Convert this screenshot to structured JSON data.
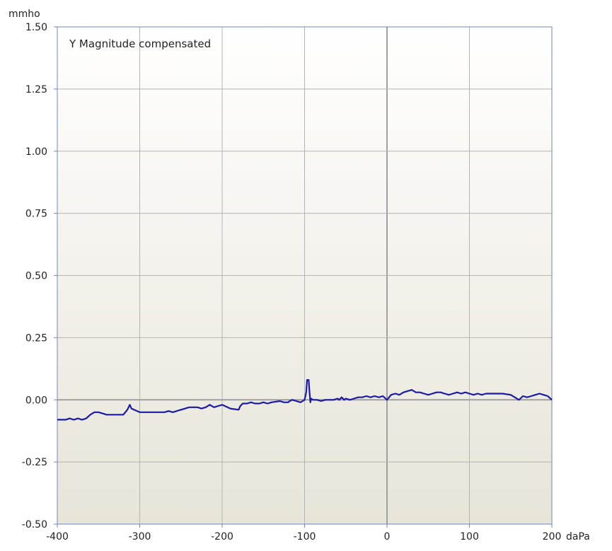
{
  "chart_data": {
    "type": "line",
    "legend_label": "Y  Magnitude compensated",
    "x_unit": "daPa",
    "y_unit": "mmho",
    "xlim": [
      -400,
      200
    ],
    "ylim": [
      -0.5,
      1.5
    ],
    "x_ticks": [
      -400,
      -300,
      -200,
      -100,
      0,
      100,
      200
    ],
    "x_tick_labels": [
      "-400",
      "-300",
      "-200",
      "-100",
      "0",
      "100",
      "200"
    ],
    "y_ticks": [
      -0.5,
      -0.25,
      0,
      0.25,
      0.5,
      0.75,
      1.0,
      1.25,
      1.5
    ],
    "y_tick_labels": [
      "-0.50",
      "-0.25",
      "0.00",
      "0.25",
      "0.50",
      "0.75",
      "1.00",
      "1.25",
      "1.50"
    ],
    "grid": true,
    "colors": {
      "line": "#1a1aa6",
      "grid": "#b4b4b4",
      "zero_line": "#a0a0a0",
      "axis": "#6f86c6",
      "bg_top": "#ffffff",
      "bg_bottom": "#e7e4d8"
    },
    "series": [
      {
        "x": [
          -400,
          -390,
          -385,
          -380,
          -375,
          -370,
          -365,
          -360,
          -355,
          -350,
          -345,
          -340,
          -335,
          -330,
          -320,
          -315,
          -312,
          -310,
          -300,
          -290,
          -280,
          -270,
          -265,
          -260,
          -250,
          -245,
          -240,
          -230,
          -225,
          -220,
          -215,
          -210,
          -205,
          -200,
          -190,
          -180,
          -178,
          -175,
          -170,
          -165,
          -160,
          -155,
          -150,
          -145,
          -140,
          -130,
          -125,
          -120,
          -118,
          -115,
          -110,
          -105,
          -100,
          -98,
          -97,
          -96,
          -95,
          -94,
          -93,
          -92,
          -90,
          -85,
          -80,
          -75,
          -70,
          -65,
          -60,
          -58,
          -55,
          -52,
          -50,
          -45,
          -40,
          -35,
          -30,
          -25,
          -20,
          -15,
          -10,
          -5,
          0,
          5,
          10,
          15,
          20,
          25,
          30,
          35,
          40,
          45,
          50,
          55,
          60,
          65,
          70,
          75,
          80,
          85,
          90,
          95,
          100,
          105,
          110,
          115,
          120,
          130,
          140,
          150,
          155,
          160,
          165,
          170,
          175,
          180,
          185,
          190,
          195,
          200
        ],
        "y": [
          -0.08,
          -0.08,
          -0.075,
          -0.08,
          -0.075,
          -0.08,
          -0.075,
          -0.06,
          -0.05,
          -0.05,
          -0.055,
          -0.06,
          -0.06,
          -0.06,
          -0.06,
          -0.04,
          -0.02,
          -0.035,
          -0.05,
          -0.05,
          -0.05,
          -0.05,
          -0.045,
          -0.05,
          -0.04,
          -0.035,
          -0.03,
          -0.03,
          -0.035,
          -0.03,
          -0.02,
          -0.03,
          -0.025,
          -0.02,
          -0.035,
          -0.04,
          -0.025,
          -0.015,
          -0.015,
          -0.01,
          -0.015,
          -0.015,
          -0.01,
          -0.015,
          -0.01,
          -0.005,
          -0.01,
          -0.01,
          -0.005,
          0.0,
          -0.005,
          -0.01,
          0.0,
          0.03,
          0.08,
          0.08,
          0.08,
          0.03,
          -0.01,
          0.005,
          0.0,
          0.0,
          -0.005,
          0.0,
          0.0,
          0.0,
          0.005,
          0.0,
          0.01,
          0.0,
          0.005,
          0.0,
          0.005,
          0.01,
          0.01,
          0.015,
          0.01,
          0.015,
          0.01,
          0.015,
          0.0,
          0.02,
          0.025,
          0.02,
          0.03,
          0.035,
          0.04,
          0.03,
          0.03,
          0.025,
          0.02,
          0.025,
          0.03,
          0.03,
          0.025,
          0.02,
          0.025,
          0.03,
          0.025,
          0.03,
          0.025,
          0.02,
          0.025,
          0.02,
          0.025,
          0.025,
          0.025,
          0.02,
          0.01,
          0.0,
          0.015,
          0.01,
          0.015,
          0.02,
          0.025,
          0.02,
          0.015,
          0.0
        ]
      }
    ]
  }
}
